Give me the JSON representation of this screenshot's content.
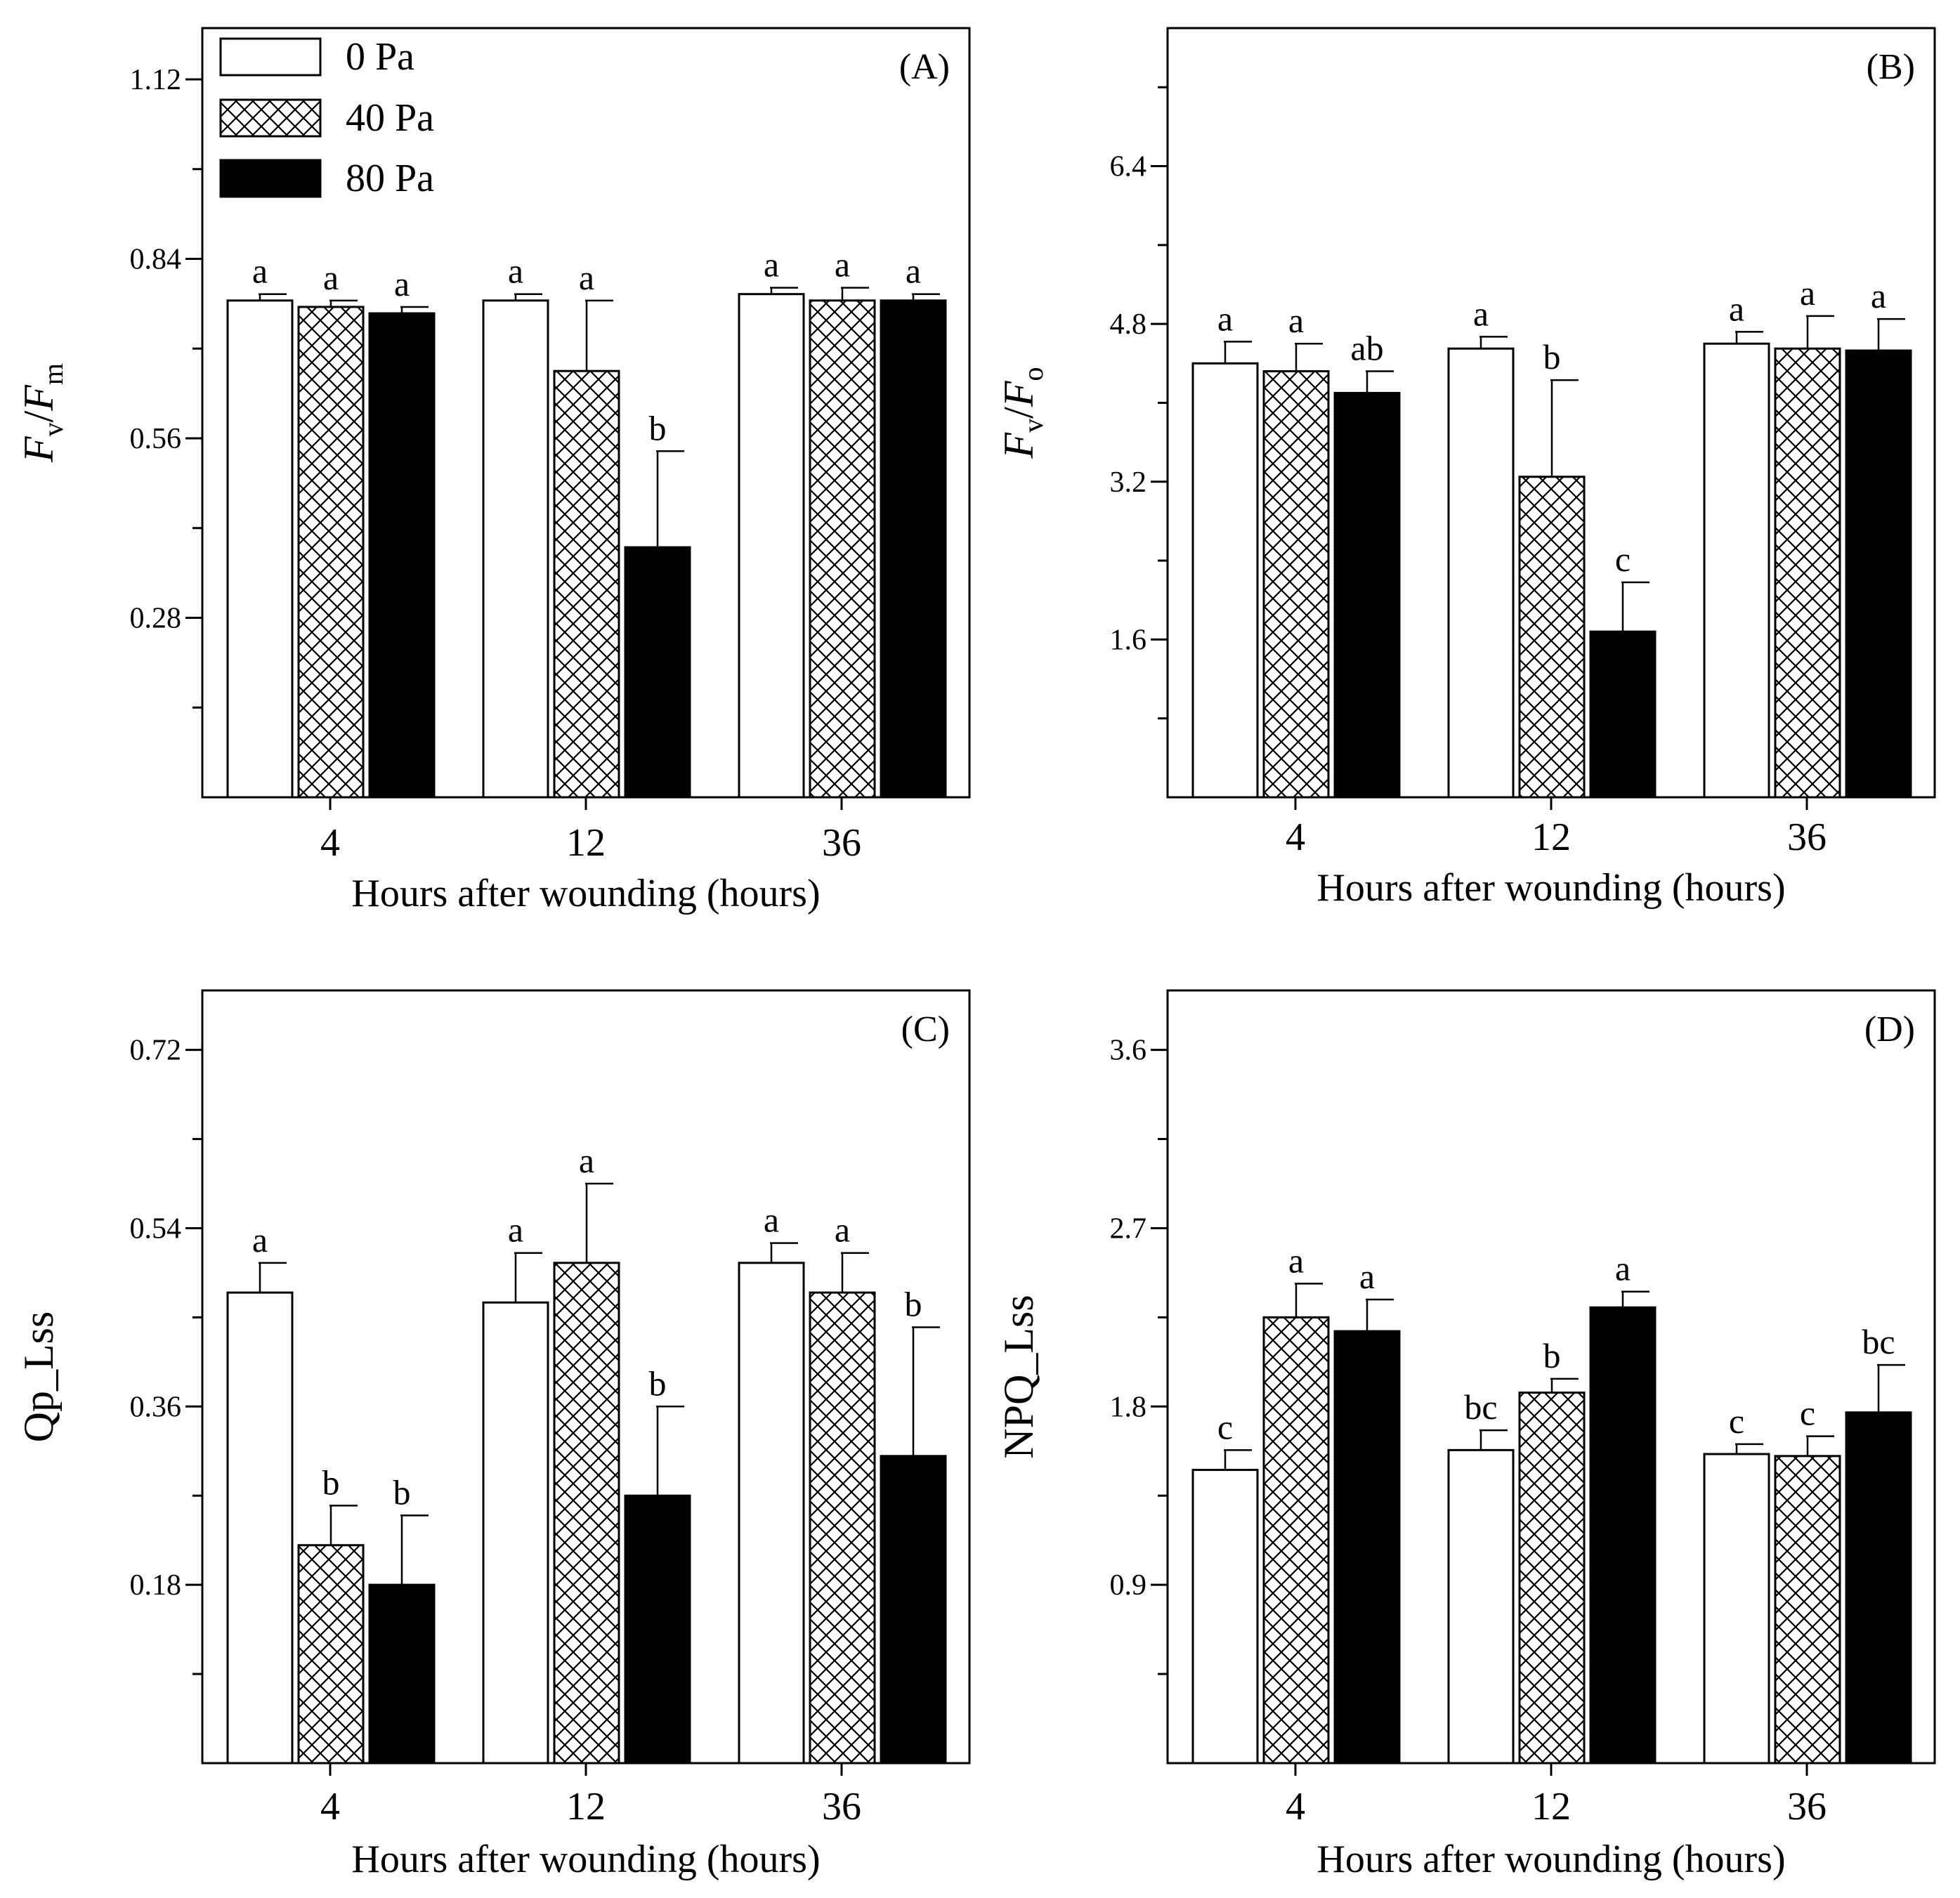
{
  "legend": [
    {
      "label": "0   Pa",
      "pattern": "white"
    },
    {
      "label": "40 Pa",
      "pattern": "crosshatch"
    },
    {
      "label": "80 Pa",
      "pattern": "black"
    }
  ],
  "chart_data": [
    {
      "type": "bar",
      "panel": "(A)",
      "categories": [
        "4",
        "12",
        "36"
      ],
      "xlabel": "Hours after wounding (hours)",
      "ylabel": {
        "main1": "F",
        "sub1": "v",
        "slash": "/",
        "main2": "F",
        "sub2": "m"
      },
      "ylim": [
        0,
        1.2
      ],
      "yticks": [
        "0.28",
        "0.56",
        "0.84",
        "1.12"
      ],
      "series": [
        {
          "name": "0   Pa",
          "values": [
            0.775,
            0.775,
            0.785
          ],
          "errors": [
            0.01,
            0.01,
            0.01
          ],
          "letters": [
            "a",
            "a",
            "a"
          ]
        },
        {
          "name": "40 Pa",
          "values": [
            0.765,
            0.665,
            0.775
          ],
          "errors": [
            0.01,
            0.11,
            0.02
          ],
          "letters": [
            "a",
            "a",
            "a"
          ]
        },
        {
          "name": "80 Pa",
          "values": [
            0.755,
            0.39,
            0.775
          ],
          "errors": [
            0.01,
            0.15,
            0.01
          ],
          "letters": [
            "a",
            "b",
            "a"
          ]
        }
      ]
    },
    {
      "type": "bar",
      "panel": "(B)",
      "categories": [
        "4",
        "12",
        "36"
      ],
      "xlabel": "Hours after wounding (hours)",
      "ylabel": {
        "main1": "F",
        "sub1": "v",
        "slash": "/",
        "main2": "F",
        "sub2": "o"
      },
      "ylim": [
        0,
        7.8
      ],
      "yticks": [
        "1.6",
        "3.2",
        "4.8",
        "6.4"
      ],
      "series": [
        {
          "name": "0   Pa",
          "values": [
            4.4,
            4.55,
            4.6
          ],
          "errors": [
            0.22,
            0.12,
            0.12
          ],
          "letters": [
            "a",
            "a",
            "a"
          ]
        },
        {
          "name": "40 Pa",
          "values": [
            4.32,
            3.25,
            4.55
          ],
          "errors": [
            0.28,
            0.98,
            0.33
          ],
          "letters": [
            "a",
            "b",
            "a"
          ]
        },
        {
          "name": "80 Pa",
          "values": [
            4.1,
            1.68,
            4.53
          ],
          "errors": [
            0.22,
            0.5,
            0.32
          ],
          "letters": [
            "ab",
            "c",
            "a"
          ]
        }
      ]
    },
    {
      "type": "bar",
      "panel": "(C)",
      "categories": [
        "4",
        "12",
        "36"
      ],
      "xlabel": "Hours after wounding (hours)",
      "ylabel": {
        "text": "Qp_Lss"
      },
      "ylim": [
        0,
        0.78
      ],
      "yticks": [
        "0.18",
        "0.36",
        "0.54",
        "0.72"
      ],
      "series": [
        {
          "name": "0   Pa",
          "values": [
            0.475,
            0.465,
            0.505
          ],
          "errors": [
            0.03,
            0.05,
            0.02
          ],
          "letters": [
            "a",
            "a",
            "a"
          ]
        },
        {
          "name": "40 Pa",
          "values": [
            0.22,
            0.505,
            0.475
          ],
          "errors": [
            0.04,
            0.08,
            0.04
          ],
          "letters": [
            "b",
            "a",
            "a"
          ]
        },
        {
          "name": "80 Pa",
          "values": [
            0.18,
            0.27,
            0.31
          ],
          "errors": [
            0.07,
            0.09,
            0.13
          ],
          "letters": [
            "b",
            "b",
            "b"
          ]
        }
      ]
    },
    {
      "type": "bar",
      "panel": "(D)",
      "categories": [
        "4",
        "12",
        "36"
      ],
      "xlabel": "Hours after wounding (hours)",
      "ylabel": {
        "text": "NPQ_Lss"
      },
      "ylim": [
        0,
        3.9
      ],
      "yticks": [
        "0.9",
        "1.8",
        "2.7",
        "3.6"
      ],
      "series": [
        {
          "name": "0   Pa",
          "values": [
            1.48,
            1.58,
            1.56
          ],
          "errors": [
            0.1,
            0.1,
            0.05
          ],
          "letters": [
            "c",
            "bc",
            "c"
          ]
        },
        {
          "name": "40 Pa",
          "values": [
            2.25,
            1.87,
            1.55
          ],
          "errors": [
            0.17,
            0.07,
            0.1
          ],
          "letters": [
            "a",
            "b",
            "c"
          ]
        },
        {
          "name": "80 Pa",
          "values": [
            2.18,
            2.3,
            1.77
          ],
          "errors": [
            0.16,
            0.08,
            0.24
          ],
          "letters": [
            "a",
            "a",
            "bc"
          ]
        }
      ]
    }
  ]
}
